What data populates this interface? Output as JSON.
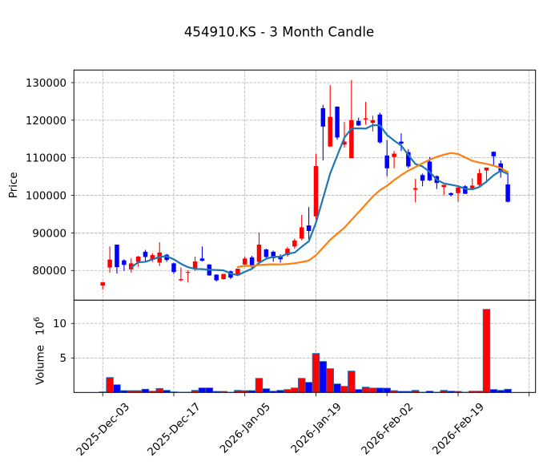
{
  "chart_data": {
    "type": "candlestick",
    "title": "454910.KS - 3 Month Candle",
    "xlabel": "",
    "ylabel": "Price",
    "volume_ylabel": "Volume",
    "volume_scale_base": "10",
    "volume_scale_exponent": "6",
    "grid": true,
    "legend": null,
    "xlim": [
      -4.05,
      60.9
    ],
    "ylim": [
      72100,
      133350
    ],
    "volume_ylim": [
      0,
      13.37
    ],
    "colors": {
      "up": "#ff0000",
      "down": "#0000ff",
      "volume_edge": "#1f77b4",
      "grid": "#b0b0b0",
      "frame": "#000000"
    },
    "x_ticks": [
      {
        "index": 0,
        "label": "2025-Dec-03"
      },
      {
        "index": 10,
        "label": "2025-Dec-17"
      },
      {
        "index": 20,
        "label": "2026-Jan-05"
      },
      {
        "index": 30,
        "label": "2026-Jan-19"
      },
      {
        "index": 40,
        "label": "2026-Feb-02"
      },
      {
        "index": 50,
        "label": "2026-Feb-19"
      },
      {
        "index": 60,
        "label": ""
      }
    ],
    "y_ticks": [
      80000,
      90000,
      100000,
      110000,
      120000,
      130000
    ],
    "volume_y_ticks": [
      5,
      10
    ],
    "moving_averages": [
      {
        "window": 5,
        "color": "#1f77b4"
      },
      {
        "window": 20,
        "color": "#ff7f0e"
      }
    ],
    "candles": {
      "open": [
        76000,
        80800,
        86900,
        82700,
        80300,
        82300,
        85000,
        83000,
        82100,
        84200,
        81900,
        77400,
        79400,
        80600,
        83200,
        81600,
        78900,
        77700,
        79800,
        78700,
        81600,
        83500,
        82300,
        85600,
        85000,
        83900,
        84100,
        86400,
        88500,
        92000,
        94400,
        123200,
        113000,
        123600,
        113500,
        109900,
        119800,
        120200,
        119300,
        121500,
        110600,
        110200,
        114300,
        111500,
        101500,
        105400,
        109000,
        105100,
        102200,
        100600,
        100600,
        102400,
        101900,
        102800,
        106600,
        111600,
        108500,
        102900
      ],
      "high": [
        76900,
        86400,
        86900,
        83000,
        83300,
        83900,
        85500,
        84600,
        87500,
        84400,
        82100,
        80800,
        80100,
        83700,
        86400,
        81700,
        79000,
        79100,
        79900,
        80500,
        83700,
        83900,
        90100,
        85800,
        85300,
        84300,
        86300,
        88500,
        94800,
        96900,
        111000,
        124100,
        129300,
        123700,
        119500,
        130700,
        120700,
        124900,
        121200,
        122000,
        114700,
        111800,
        116500,
        112300,
        104400,
        105800,
        110200,
        105300,
        102800,
        100800,
        102100,
        102700,
        104500,
        107000,
        107400,
        111700,
        109300,
        105800
      ],
      "low": [
        74900,
        79400,
        79200,
        79900,
        79400,
        81000,
        82100,
        82300,
        81200,
        82300,
        79100,
        77100,
        76800,
        79900,
        82400,
        78600,
        77100,
        77600,
        77700,
        78500,
        81400,
        80500,
        81600,
        83300,
        82300,
        82100,
        83700,
        85800,
        88000,
        88300,
        93500,
        109300,
        112900,
        114800,
        112700,
        109900,
        118500,
        118800,
        117000,
        113800,
        105100,
        107200,
        111800,
        107200,
        98100,
        102400,
        103800,
        101700,
        100100,
        99700,
        98300,
        100400,
        101500,
        102400,
        103300,
        108100,
        104700,
        98100
      ],
      "close": [
        76900,
        82900,
        80900,
        81500,
        81900,
        83700,
        83600,
        84100,
        84800,
        82800,
        79600,
        77700,
        79600,
        82400,
        82600,
        78700,
        77400,
        79100,
        78100,
        80500,
        83200,
        81400,
        86900,
        83600,
        83300,
        83000,
        85800,
        88000,
        91500,
        90500,
        107800,
        118300,
        120900,
        115400,
        114300,
        120000,
        118600,
        120500,
        120000,
        114100,
        107200,
        111100,
        113800,
        107700,
        101900,
        103900,
        104000,
        103300,
        102800,
        100100,
        102100,
        100400,
        102600,
        105900,
        107400,
        110400,
        106500,
        98300
      ],
      "volume_millions": [
        0.08,
        2.17,
        1.12,
        0.27,
        0.27,
        0.27,
        0.47,
        0.19,
        0.58,
        0.31,
        0.08,
        0.04,
        0.04,
        0.31,
        0.66,
        0.66,
        0.16,
        0.16,
        0.04,
        0.31,
        0.27,
        0.27,
        2.05,
        0.54,
        0.19,
        0.31,
        0.43,
        0.66,
        2.05,
        1.47,
        5.66,
        4.5,
        3.45,
        1.24,
        0.89,
        3.1,
        0.43,
        0.78,
        0.64,
        0.64,
        0.62,
        0.27,
        0.16,
        0.16,
        0.31,
        0.04,
        0.19,
        0.04,
        0.31,
        0.19,
        0.16,
        0.04,
        0.19,
        0.19,
        12.05,
        0.43,
        0.31,
        0.47
      ]
    }
  }
}
